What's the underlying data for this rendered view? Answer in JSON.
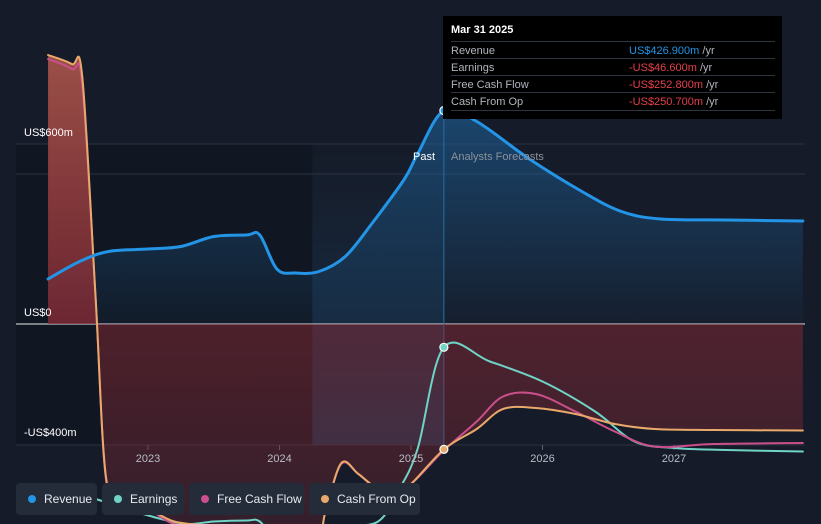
{
  "chart_data": {
    "type": "line",
    "y_labels": {
      "top": "US$600m",
      "zero": "US$0",
      "bottom": "-US$400m"
    },
    "ylim": [
      -425,
      600
    ],
    "x_ticks": [
      "2023",
      "2024",
      "2025",
      "2026",
      "2027"
    ],
    "regions": {
      "past": "Past",
      "forecast": "Analysts Forecasts"
    },
    "series": [
      {
        "name": "Revenue",
        "color": "#2394e6",
        "points": [
          [
            2022.24,
            90
          ],
          [
            2022.48,
            125
          ],
          [
            2022.7,
            145
          ],
          [
            2023.0,
            150
          ],
          [
            2023.25,
            155
          ],
          [
            2023.5,
            175
          ],
          [
            2023.75,
            178
          ],
          [
            2023.85,
            178
          ],
          [
            2023.98,
            110
          ],
          [
            2024.12,
            102
          ],
          [
            2024.3,
            105
          ],
          [
            2024.5,
            135
          ],
          [
            2024.7,
            200
          ],
          [
            2024.95,
            290
          ],
          [
            2025.05,
            340
          ],
          [
            2025.25,
            426.9
          ],
          [
            2025.5,
            405
          ],
          [
            2025.9,
            330
          ],
          [
            2026.3,
            265
          ],
          [
            2026.6,
            225
          ],
          [
            2026.9,
            210
          ],
          [
            2027.4,
            208
          ],
          [
            2027.98,
            206
          ]
        ]
      },
      {
        "name": "Earnings",
        "color": "#6fd3c6",
        "points": [
          [
            2022.24,
            -320
          ],
          [
            2022.48,
            -340
          ],
          [
            2022.7,
            -358
          ],
          [
            2022.9,
            -375
          ],
          [
            2023.1,
            -390
          ],
          [
            2023.3,
            -400
          ],
          [
            2023.5,
            -395
          ],
          [
            2023.75,
            -393
          ],
          [
            2023.85,
            -395
          ],
          [
            2023.98,
            -435
          ],
          [
            2024.12,
            -432
          ],
          [
            2024.3,
            -425
          ],
          [
            2024.5,
            -405
          ],
          [
            2024.75,
            -395
          ],
          [
            2024.9,
            -335
          ],
          [
            2025.05,
            -250
          ],
          [
            2025.25,
            -46.6
          ],
          [
            2025.6,
            -75
          ],
          [
            2026.0,
            -115
          ],
          [
            2026.4,
            -175
          ],
          [
            2026.7,
            -235
          ],
          [
            2027.0,
            -248
          ],
          [
            2027.4,
            -252
          ],
          [
            2027.98,
            -255
          ]
        ]
      },
      {
        "name": "Free Cash Flow",
        "color": "#cb4f8c",
        "points": [
          [
            2022.24,
            530
          ],
          [
            2022.42,
            510
          ],
          [
            2022.5,
            480
          ],
          [
            2022.6,
            60
          ],
          [
            2022.68,
            -310
          ],
          [
            2022.8,
            -350
          ],
          [
            2023.0,
            -370
          ],
          [
            2023.2,
            -400
          ],
          [
            2023.5,
            -410
          ],
          [
            2023.75,
            -425
          ],
          [
            2024.0,
            -432
          ],
          [
            2024.28,
            -438
          ],
          [
            2024.35,
            -375
          ],
          [
            2024.47,
            -280
          ],
          [
            2024.6,
            -300
          ],
          [
            2024.75,
            -330
          ],
          [
            2024.95,
            -330
          ],
          [
            2025.25,
            -252.8
          ],
          [
            2025.5,
            -195
          ],
          [
            2025.7,
            -145
          ],
          [
            2025.95,
            -140
          ],
          [
            2026.25,
            -175
          ],
          [
            2026.55,
            -215
          ],
          [
            2026.85,
            -245
          ],
          [
            2027.3,
            -240
          ],
          [
            2027.98,
            -238
          ]
        ]
      },
      {
        "name": "Cash From Op",
        "color": "#e8a96a",
        "points": [
          [
            2022.24,
            538
          ],
          [
            2022.42,
            520
          ],
          [
            2022.5,
            495
          ],
          [
            2022.6,
            60
          ],
          [
            2022.68,
            -305
          ],
          [
            2022.8,
            -345
          ],
          [
            2023.0,
            -368
          ],
          [
            2023.2,
            -395
          ],
          [
            2023.5,
            -405
          ],
          [
            2023.75,
            -420
          ],
          [
            2024.0,
            -430
          ],
          [
            2024.28,
            -436
          ],
          [
            2024.35,
            -375
          ],
          [
            2024.47,
            -278
          ],
          [
            2024.6,
            -300
          ],
          [
            2024.75,
            -328
          ],
          [
            2024.95,
            -330
          ],
          [
            2025.25,
            -250.7
          ],
          [
            2025.5,
            -210
          ],
          [
            2025.7,
            -170
          ],
          [
            2025.95,
            -168
          ],
          [
            2026.25,
            -180
          ],
          [
            2026.55,
            -200
          ],
          [
            2026.85,
            -210
          ],
          [
            2027.3,
            -212
          ],
          [
            2027.98,
            -213
          ]
        ]
      }
    ],
    "highlight_date": 2025.25,
    "past_region_start": 2024.25,
    "grid": true
  },
  "tooltip": {
    "date": "Mar 31 2025",
    "rows": [
      {
        "name": "Revenue",
        "value": "US$426.900m",
        "unit": "/yr",
        "color": "#2394e6"
      },
      {
        "name": "Earnings",
        "value": "-US$46.600m",
        "unit": "/yr",
        "color": "#e5404a"
      },
      {
        "name": "Free Cash Flow",
        "value": "-US$252.800m",
        "unit": "/yr",
        "color": "#e5404a"
      },
      {
        "name": "Cash From Op",
        "value": "-US$250.700m",
        "unit": "/yr",
        "color": "#e5404a"
      }
    ]
  },
  "legend": [
    {
      "name": "Revenue",
      "color": "#2394e6"
    },
    {
      "name": "Earnings",
      "color": "#6fd3c6"
    },
    {
      "name": "Free Cash Flow",
      "color": "#cb4f8c"
    },
    {
      "name": "Cash From Op",
      "color": "#e8a96a"
    }
  ]
}
